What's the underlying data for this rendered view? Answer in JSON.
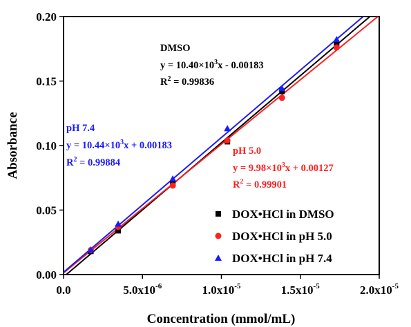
{
  "chart_data": {
    "type": "scatter",
    "xlabel": "Concentration (mmol/mL)",
    "ylabel": "Absorbance",
    "xlim": [
      0,
      2e-05
    ],
    "ylim": [
      0,
      0.2
    ],
    "x_ticks": [
      {
        "value": 0,
        "base": "0.0",
        "exp": ""
      },
      {
        "value": 5e-06,
        "base": "5.0x10",
        "exp": "-6"
      },
      {
        "value": 1e-05,
        "base": "1.0x10",
        "exp": "-5"
      },
      {
        "value": 1.5e-05,
        "base": "1.5x10",
        "exp": "-5"
      },
      {
        "value": 2e-05,
        "base": "2.0x10",
        "exp": "-5"
      }
    ],
    "y_ticks": [
      {
        "value": 0,
        "label": "0.00"
      },
      {
        "value": 0.05,
        "label": "0.05"
      },
      {
        "value": 0.1,
        "label": "0.10"
      },
      {
        "value": 0.15,
        "label": "0.15"
      },
      {
        "value": 0.2,
        "label": "0.20"
      }
    ],
    "grid": false,
    "legend_position": "bottom-right",
    "series": [
      {
        "name": "DOX•HCl in DMSO",
        "key": "dmso",
        "marker": "square",
        "color": "#000000",
        "x": [
          1.73e-06,
          3.46e-06,
          6.92e-06,
          1.038e-05,
          1.384e-05,
          1.73e-05
        ],
        "y": [
          0.018,
          0.034,
          0.071,
          0.103,
          0.142,
          0.179
        ],
        "fit": {
          "slope": 10400.0,
          "intercept": -0.00183
        },
        "annotation": {
          "label": "DMSO",
          "eq_prefix": "y = 10.40×10",
          "eq_exp": "3",
          "eq_suffix": "x - 0.00183",
          "r2_prefix": "R",
          "r2_exp": "2",
          "r2_value": " = 0.99836"
        }
      },
      {
        "name": "DOX•HCl in pH 5.0",
        "key": "ph50",
        "marker": "circle",
        "color": "#ff2020",
        "x": [
          1.73e-06,
          3.46e-06,
          6.92e-06,
          1.038e-05,
          1.384e-05,
          1.73e-05
        ],
        "y": [
          0.019,
          0.037,
          0.069,
          0.104,
          0.137,
          0.176
        ],
        "fit": {
          "slope": 9980.0,
          "intercept": 0.00127
        },
        "annotation": {
          "label": "pH 5.0",
          "eq_prefix": "y = 9.98×10",
          "eq_exp": "3",
          "eq_suffix": "x + 0.00127",
          "r2_prefix": "R",
          "r2_exp": "2",
          "r2_value": " = 0.99901"
        }
      },
      {
        "name": "DOX•HCl in pH 7.4",
        "key": "ph74",
        "marker": "triangle",
        "color": "#1a1aff",
        "x": [
          1.73e-06,
          3.46e-06,
          6.92e-06,
          1.038e-05,
          1.384e-05,
          1.73e-05
        ],
        "y": [
          0.019,
          0.039,
          0.074,
          0.113,
          0.144,
          0.182
        ],
        "fit": {
          "slope": 10440.0,
          "intercept": 0.00183
        },
        "annotation": {
          "label": "pH 7.4",
          "eq_prefix": "y = 10.44×10",
          "eq_exp": "3",
          "eq_suffix": "x + 0.00183",
          "r2_prefix": "R",
          "r2_exp": "2",
          "r2_value": " = 0.99884"
        }
      }
    ]
  }
}
